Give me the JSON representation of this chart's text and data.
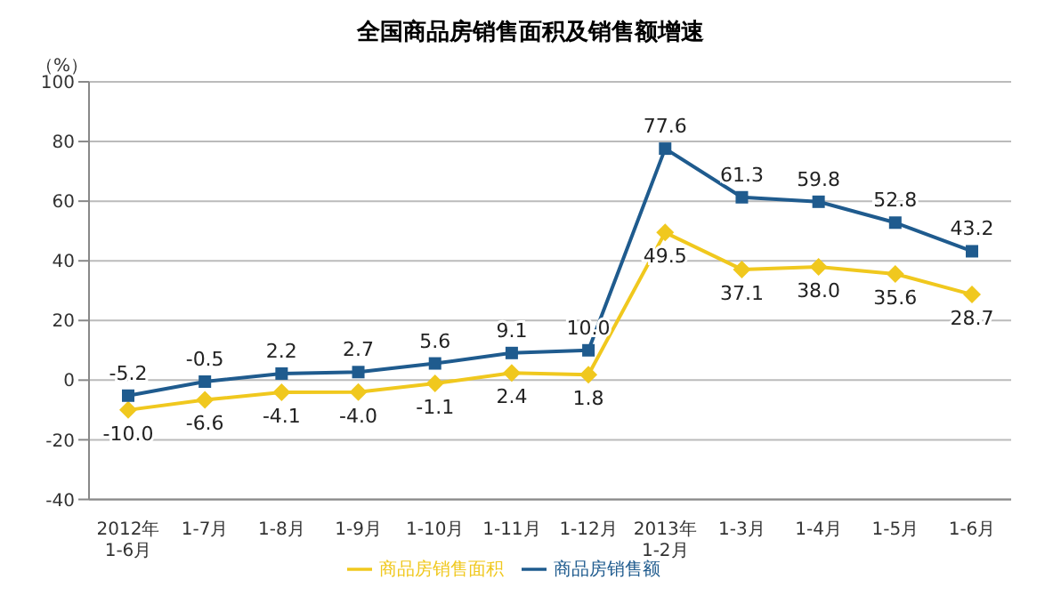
{
  "chart_data": {
    "type": "line",
    "title": "全国商品房销售面积及销售额增速",
    "ylabel": "（%）",
    "categories": [
      "2012年\n1-6月",
      "1-7月",
      "1-8月",
      "1-9月",
      "1-10月",
      "1-11月",
      "1-12月",
      "2013年\n1-2月",
      "1-3月",
      "1-4月",
      "1-5月",
      "1-6月"
    ],
    "series": [
      {
        "name": "商品房销售面积",
        "color": "#f0c81e",
        "marker": "diamond",
        "values": [
          -10.0,
          -6.6,
          -4.1,
          -4.0,
          -1.1,
          2.4,
          1.8,
          49.5,
          37.1,
          38.0,
          35.6,
          28.7
        ],
        "value_labels": [
          "-10.0",
          "-6.6",
          "-4.1",
          "-4.0",
          "-1.1",
          "2.4",
          "1.8",
          "49.5",
          "37.1",
          "38.0",
          "35.6",
          "28.7"
        ]
      },
      {
        "name": "商品房销售额",
        "color": "#1f5b8e",
        "marker": "square",
        "values": [
          -5.2,
          -0.5,
          2.2,
          2.7,
          5.6,
          9.1,
          10.0,
          77.6,
          61.3,
          59.8,
          52.8,
          43.2
        ],
        "value_labels": [
          "-5.2",
          "-0.5",
          "2.2",
          "2.7",
          "5.6",
          "9.1",
          "10.0",
          "77.6",
          "61.3",
          "59.8",
          "52.8",
          "43.2"
        ]
      }
    ],
    "ylim": [
      -40,
      100
    ],
    "yticks": [
      -40,
      -20,
      0,
      20,
      40,
      60,
      80,
      100
    ],
    "grid": "y",
    "legend": "bottom"
  }
}
